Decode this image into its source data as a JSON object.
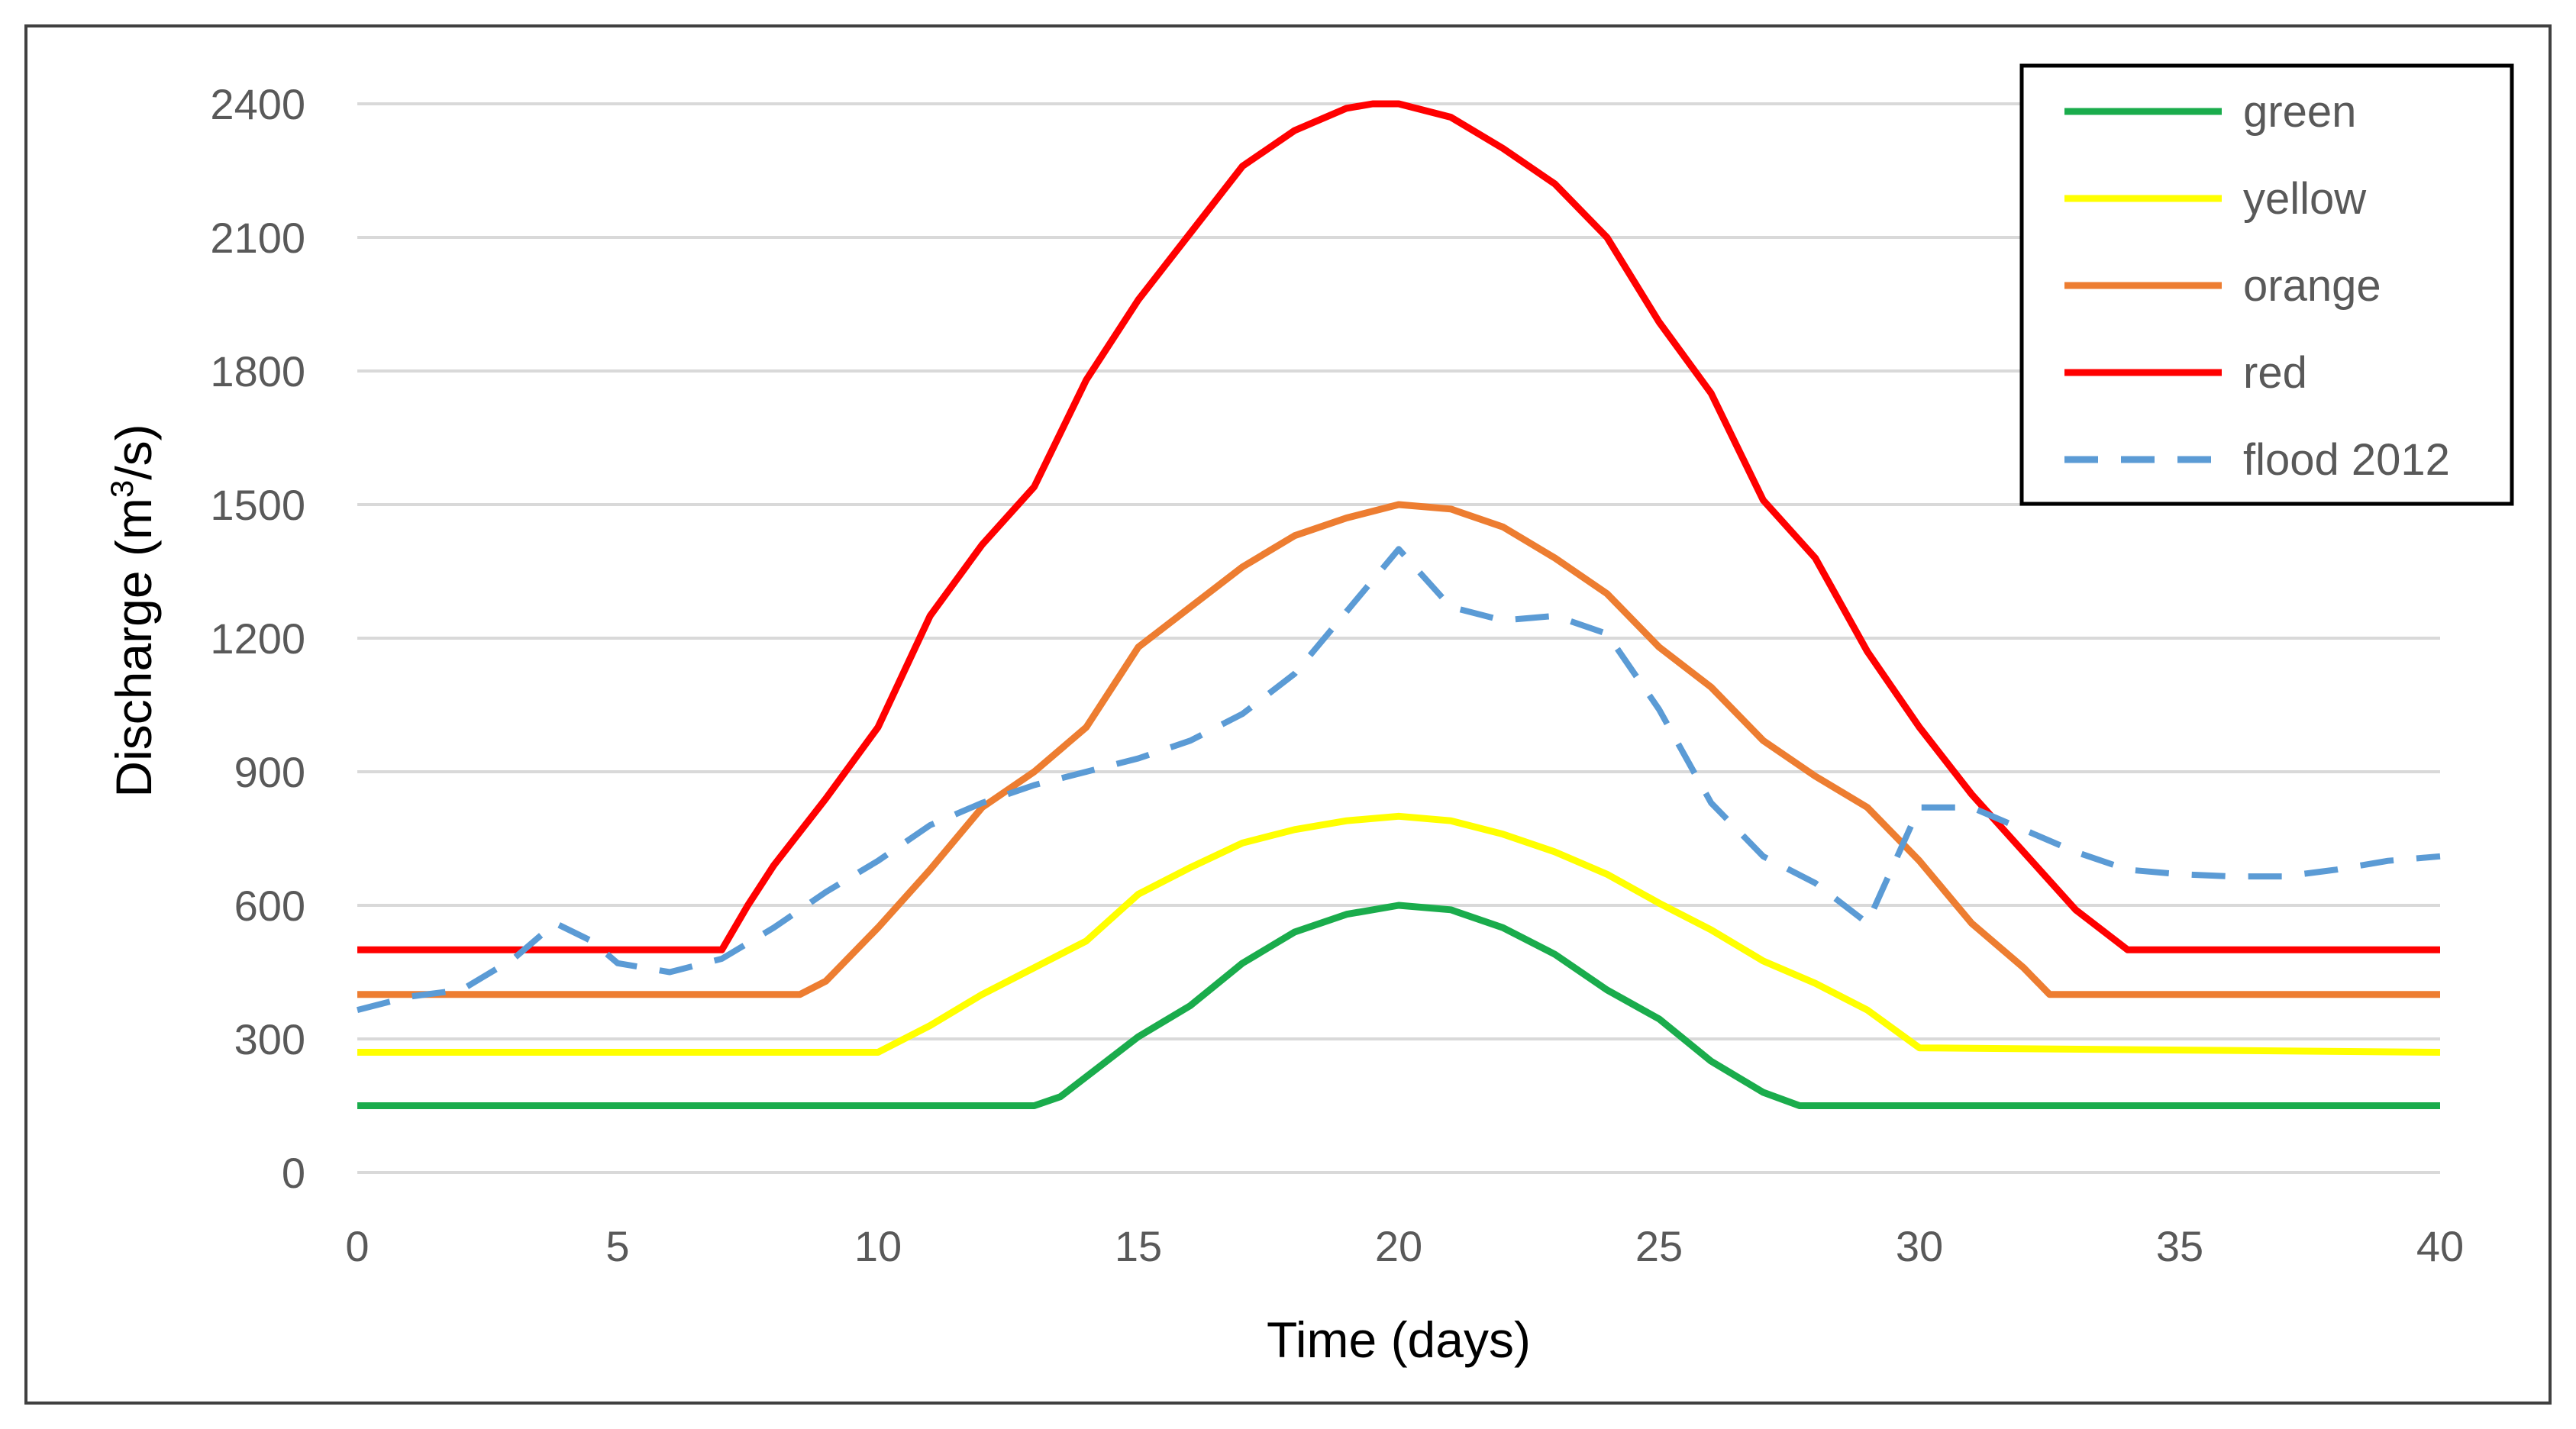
{
  "chart_data": {
    "type": "line",
    "title": "",
    "xlabel": "Time (days)",
    "ylabel_main": "Discharge (m",
    "ylabel_sup": "3",
    "ylabel_tail": "/s)",
    "xlim": [
      0,
      40
    ],
    "ylim": [
      0,
      2400
    ],
    "xticks": [
      0,
      5,
      10,
      15,
      20,
      25,
      30,
      35,
      40
    ],
    "yticks": [
      0,
      300,
      600,
      900,
      1200,
      1500,
      1800,
      2100,
      2400
    ],
    "xtick_labels": [
      "0",
      "5",
      "10",
      "15",
      "20",
      "25",
      "30",
      "35",
      "40"
    ],
    "ytick_labels": [
      "0",
      "300",
      "600",
      "900",
      "1200",
      "1500",
      "1800",
      "2100",
      "2400"
    ],
    "grid": "horizontal",
    "legend_position": "top-right",
    "series": [
      {
        "name": "green",
        "color": "#1aac4c",
        "dash": "solid",
        "x": [
          0,
          13,
          13.5,
          14,
          15,
          16,
          17,
          18,
          19,
          20,
          21,
          22,
          23,
          24,
          25,
          26,
          27,
          27.7,
          40
        ],
        "y": [
          150,
          150,
          170,
          215,
          305,
          375,
          470,
          540,
          580,
          600,
          590,
          550,
          490,
          410,
          345,
          250,
          180,
          150,
          150
        ]
      },
      {
        "name": "yellow",
        "color": "#ffff00",
        "dash": "solid",
        "x": [
          0,
          10,
          11,
          12,
          13,
          14,
          15,
          16,
          17,
          18,
          19,
          20,
          21,
          22,
          23,
          24,
          25,
          26,
          27,
          28,
          29,
          30,
          40
        ],
        "y": [
          270,
          270,
          330,
          400,
          460,
          520,
          625,
          685,
          740,
          770,
          790,
          800,
          790,
          760,
          720,
          670,
          605,
          545,
          475,
          425,
          365,
          280,
          270
        ]
      },
      {
        "name": "orange",
        "color": "#ed7d31",
        "dash": "solid",
        "x": [
          0,
          8.5,
          9,
          10,
          11,
          12,
          13,
          14,
          15,
          16,
          17,
          18,
          19,
          20,
          21,
          22,
          23,
          24,
          25,
          26,
          27,
          28,
          29,
          30,
          31,
          32,
          32.5,
          40
        ],
        "y": [
          400,
          400,
          430,
          550,
          680,
          820,
          900,
          1000,
          1180,
          1270,
          1360,
          1430,
          1470,
          1500,
          1490,
          1450,
          1380,
          1300,
          1180,
          1090,
          970,
          890,
          820,
          700,
          560,
          460,
          400,
          400
        ]
      },
      {
        "name": "red",
        "color": "#ff0000",
        "dash": "solid",
        "x": [
          0,
          7,
          7.5,
          8,
          9,
          10,
          11,
          12,
          13,
          14,
          15,
          16,
          17,
          18,
          19,
          19.5,
          20,
          21,
          22,
          23,
          24,
          25,
          26,
          27,
          28,
          29,
          30,
          31,
          32,
          33,
          34,
          40
        ],
        "y": [
          500,
          500,
          600,
          690,
          840,
          1000,
          1250,
          1410,
          1540,
          1780,
          1960,
          2110,
          2260,
          2340,
          2390,
          2400,
          2400,
          2370,
          2300,
          2220,
          2100,
          1910,
          1750,
          1510,
          1380,
          1170,
          1000,
          850,
          720,
          590,
          500,
          500
        ]
      },
      {
        "name": "flood 2012",
        "color": "#5b9bd5",
        "dash": "dashed",
        "x": [
          0,
          1,
          2,
          3,
          3.8,
          4.5,
          5,
          6,
          7,
          8,
          9,
          10,
          11,
          12,
          13,
          14,
          15,
          16,
          17,
          18,
          19,
          20,
          21,
          22,
          23,
          24,
          25,
          26,
          27,
          28,
          29,
          30,
          31,
          32,
          33,
          34,
          35,
          36,
          37,
          38,
          39,
          40
        ],
        "y": [
          365,
          395,
          410,
          480,
          560,
          520,
          470,
          450,
          480,
          550,
          630,
          700,
          780,
          830,
          870,
          900,
          930,
          970,
          1030,
          1120,
          1260,
          1400,
          1270,
          1240,
          1250,
          1210,
          1040,
          830,
          710,
          650,
          560,
          820,
          820,
          770,
          720,
          680,
          670,
          665,
          665,
          680,
          700,
          710
        ]
      }
    ]
  }
}
